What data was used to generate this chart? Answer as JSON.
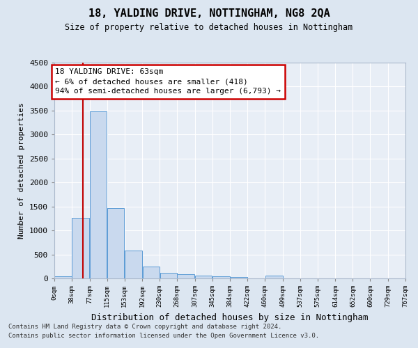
{
  "title": "18, YALDING DRIVE, NOTTINGHAM, NG8 2QA",
  "subtitle": "Size of property relative to detached houses in Nottingham",
  "xlabel": "Distribution of detached houses by size in Nottingham",
  "ylabel": "Number of detached properties",
  "bar_values": [
    50,
    1260,
    3480,
    1460,
    580,
    245,
    115,
    80,
    55,
    45,
    35,
    0,
    55,
    0,
    0,
    0,
    0,
    0,
    0,
    0
  ],
  "bar_edges": [
    0,
    38,
    77,
    115,
    153,
    192,
    230,
    268,
    307,
    345,
    384,
    422,
    460,
    499,
    537,
    575,
    614,
    652,
    690,
    729,
    767
  ],
  "bar_color": "#c9d9ee",
  "bar_edge_color": "#5b9bd5",
  "property_size": 63,
  "annotation_line1": "18 YALDING DRIVE: 63sqm",
  "annotation_line2": "← 6% of detached houses are smaller (418)",
  "annotation_line3": "94% of semi-detached houses are larger (6,793) →",
  "vline_color": "#c00000",
  "ylim": [
    0,
    4500
  ],
  "yticks": [
    0,
    500,
    1000,
    1500,
    2000,
    2500,
    3000,
    3500,
    4000,
    4500
  ],
  "footer_line1": "Contains HM Land Registry data © Crown copyright and database right 2024.",
  "footer_line2": "Contains public sector information licensed under the Open Government Licence v3.0.",
  "bg_color": "#dce6f1",
  "plot_bg_color": "#dce6f1"
}
